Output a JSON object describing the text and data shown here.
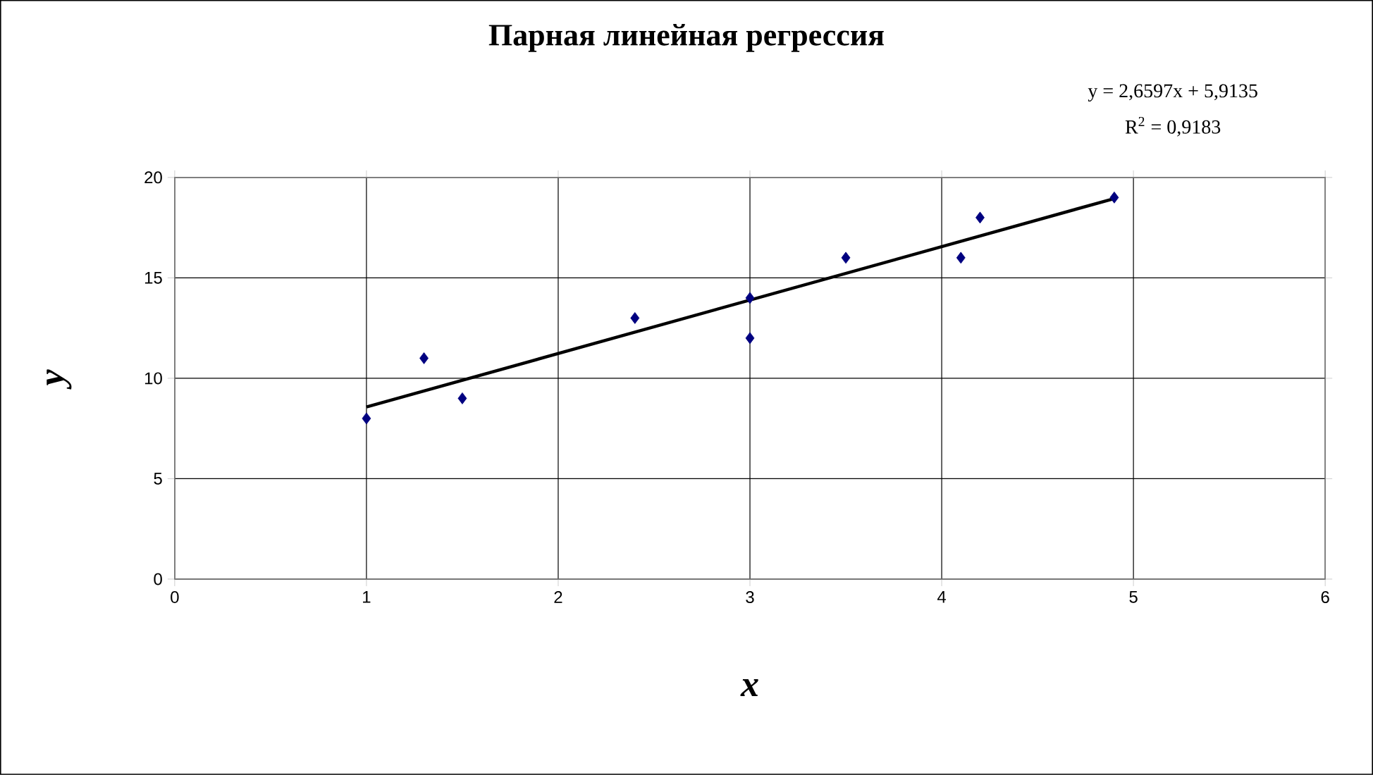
{
  "chart_data": {
    "type": "scatter",
    "title": "Парная линейная регрессия",
    "xlabel": "x",
    "ylabel": "y",
    "annotations": [
      "y = 2,6597x + 5,9135",
      "R$^{2}$ = 0,9183"
    ],
    "xlim": [
      0,
      6
    ],
    "xticks": [
      0,
      1,
      2,
      3,
      4,
      5,
      6
    ],
    "ylim": [
      0,
      20
    ],
    "yticks": [
      0,
      5,
      10,
      15,
      20
    ],
    "grid": true,
    "series": [
      {
        "color": "#000080",
        "marker": "diamond",
        "x": [
          1,
          1.3,
          1.5,
          2.4,
          3,
          3,
          3.5,
          4.1,
          4.2,
          4.9
        ],
        "values": [
          8,
          11,
          9,
          13,
          14,
          12,
          16,
          16,
          18,
          19
        ]
      },
      {
        "type": "line",
        "color": "#000000",
        "line_style": "solid",
        "x": [
          1,
          4.9
        ],
        "values": [
          8.57,
          18.95
        ]
      }
    ]
  }
}
